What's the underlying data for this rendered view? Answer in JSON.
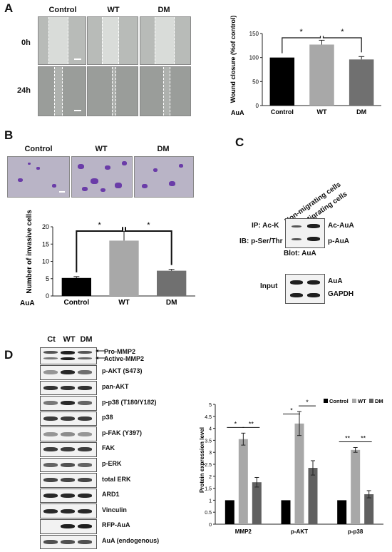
{
  "panel_A": {
    "letter": "A",
    "columns": [
      "Control",
      "WT",
      "DM"
    ],
    "rows": [
      "0h",
      "24h"
    ]
  },
  "panel_B": {
    "letter": "B",
    "columns": [
      "Control",
      "WT",
      "DM"
    ]
  },
  "panel_C": {
    "letter": "C",
    "col_labels": [
      "Non-migrating cells",
      "Migrating cells"
    ],
    "ip_label": "IP: Ac-K",
    "ib_label": "IB: p-Ser/Thr",
    "blot_label": "Blot: AuA",
    "band_labels": [
      "Ac-AuA",
      "p-AuA"
    ],
    "input_label": "Input",
    "input_bands": [
      "AuA",
      "GAPDH"
    ]
  },
  "panel_D": {
    "letter": "D",
    "lanes": [
      "Ct",
      "WT",
      "DM"
    ],
    "arrow_labels": [
      "Pro-MMP2",
      "Active-MMP2"
    ],
    "blots": [
      "p-AKT (S473)",
      "pan-AKT",
      "p-p38 (T180/Y182)",
      "p38",
      "p-FAK (Y397)",
      "FAK",
      "p-ERK",
      "total ERK",
      "ARD1",
      "Vinculin",
      "RFP-AuA",
      "AuA (endogenous)"
    ]
  },
  "chart_data": [
    {
      "type": "bar",
      "categories": [
        "Control",
        "WT",
        "DM"
      ],
      "values": [
        100,
        127,
        96
      ],
      "errors": [
        0,
        9,
        6
      ],
      "colors": [
        "#000000",
        "#a8a8a8",
        "#707070"
      ],
      "ylabel": "Wound closure (%of control)",
      "xprefix": "AuA",
      "ylim": [
        0,
        150
      ],
      "yticks": [
        0,
        50,
        100,
        150
      ],
      "significance": [
        "*",
        "*"
      ]
    },
    {
      "type": "bar",
      "categories": [
        "Control",
        "WT",
        "DM"
      ],
      "values": [
        5.2,
        16.0,
        7.3
      ],
      "errors": [
        0.4,
        2.7,
        0.4
      ],
      "colors": [
        "#000000",
        "#a8a8a8",
        "#707070"
      ],
      "ylabel": "Number of invasive cells",
      "xprefix": "AuA",
      "ylim": [
        0,
        20
      ],
      "yticks": [
        0,
        5,
        10,
        15,
        20
      ],
      "significance": [
        "*",
        "*"
      ]
    },
    {
      "type": "bar",
      "categories": [
        "MMP2",
        "p-AKT",
        "p-p38"
      ],
      "series": [
        {
          "name": "Control",
          "values": [
            1.0,
            1.0,
            1.0
          ],
          "errors": [
            0,
            0,
            0
          ]
        },
        {
          "name": "WT",
          "values": [
            3.55,
            4.2,
            3.1
          ],
          "errors": [
            0.25,
            0.5,
            0.1
          ]
        },
        {
          "name": "DM",
          "values": [
            1.75,
            2.35,
            1.25
          ],
          "errors": [
            0.2,
            0.3,
            0.15
          ]
        }
      ],
      "colors": [
        "#000000",
        "#a8a8a8",
        "#606060"
      ],
      "ylabel": "Protein expression level",
      "ylim": [
        0,
        5
      ],
      "yticks": [
        0,
        0.5,
        1,
        1.5,
        2,
        2.5,
        3,
        3.5,
        4,
        4.5,
        5
      ],
      "significance": [
        [
          "*",
          "**"
        ],
        [
          "*",
          "*"
        ],
        [
          "**",
          "**"
        ]
      ],
      "legend": "top-right"
    }
  ]
}
